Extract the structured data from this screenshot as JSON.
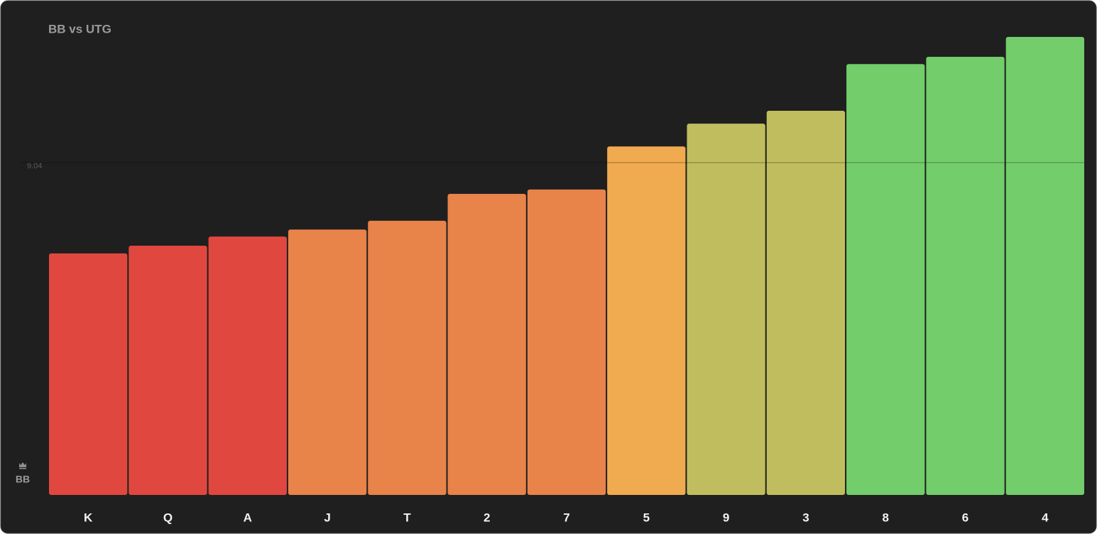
{
  "chart_data": {
    "type": "bar",
    "title": "BB vs UTG",
    "y_label": "BB",
    "categories": [
      "K",
      "Q",
      "A",
      "J",
      "T",
      "2",
      "7",
      "5",
      "9",
      "3",
      "8",
      "6",
      "4"
    ],
    "values": [
      6.57,
      6.78,
      7.03,
      7.22,
      7.46,
      8.19,
      8.31,
      9.48,
      10.1,
      10.45,
      11.72,
      11.92,
      12.46
    ],
    "colors": [
      "#e0483f",
      "#e0483f",
      "#e0483f",
      "#e8834a",
      "#e8834a",
      "#e8834a",
      "#e8834a",
      "#f0aa4f",
      "#bfbd5e",
      "#bfbd5e",
      "#72cd6a",
      "#72cd6a",
      "#72cd6a"
    ],
    "ylim": [
      0,
      12.46
    ],
    "yticks": [
      9.04
    ],
    "grid": true
  }
}
